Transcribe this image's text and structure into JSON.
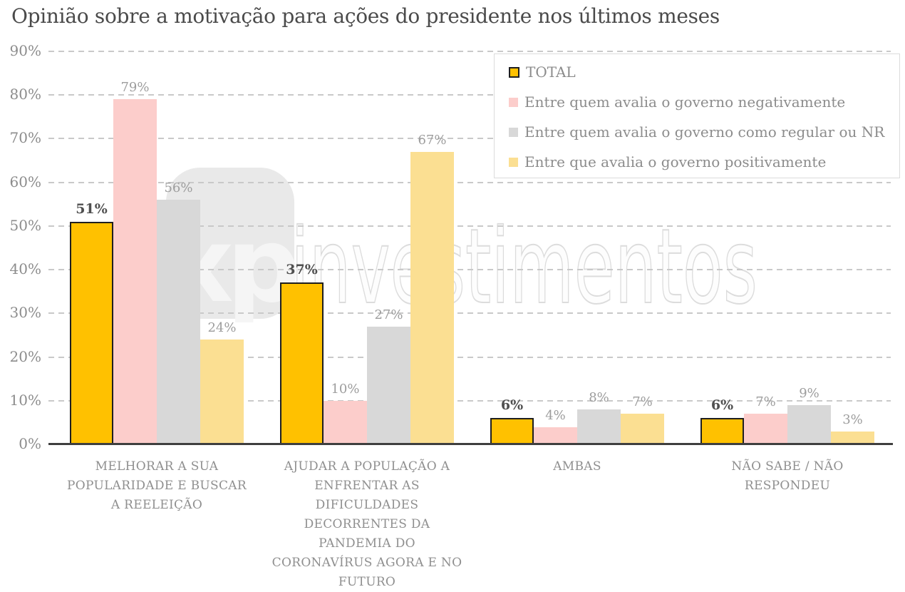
{
  "watermark": {
    "logo_text": "xp",
    "text": "investimentos"
  },
  "colors": {
    "gridline": "#c9c9c9",
    "axis_line": "#3f3f3f",
    "title_text": "#4a4a4a",
    "muted_text": "#8c8c8c",
    "value_label": "#9d9d9d",
    "value_label_emphasis": "#4f4f4f",
    "legend_border": "#dcdcdc",
    "total_bar_border": "#1f1f1f"
  },
  "chart_data": {
    "type": "bar",
    "title": "Opinião sobre a motivação para ações do presidente nos últimos meses",
    "categories": [
      "MELHORAR A SUA POPULARIDADE E BUSCAR A REELEIÇÃO",
      "AJUDAR A POPULAÇÃO A ENFRENTAR AS DIFICULDADES DECORRENTES DA PANDEMIA DO CORONAVÍRUS AGORA E NO FUTURO",
      "AMBAS",
      "NÃO SABE / NÃO RESPONDEU"
    ],
    "series": [
      {
        "name": "TOTAL",
        "color": "#ffc100",
        "border": "#1f1f1f",
        "emphasis": true,
        "values": [
          51,
          37,
          6,
          6
        ]
      },
      {
        "name": "Entre quem avalia o governo negativamente",
        "color": "#fccdcb",
        "emphasis": false,
        "values": [
          79,
          10,
          4,
          7
        ]
      },
      {
        "name": "Entre quem avalia o governo como regular ou NR",
        "color": "#d8d8d8",
        "emphasis": false,
        "values": [
          56,
          27,
          8,
          9
        ]
      },
      {
        "name": "Entre que avalia o governo positivamente",
        "color": "#fbdf92",
        "emphasis": false,
        "values": [
          24,
          67,
          7,
          3
        ]
      }
    ],
    "ylim": [
      0,
      90
    ],
    "ytick_step": 10,
    "ytick_labels": [
      "0%",
      "10%",
      "20%",
      "30%",
      "40%",
      "50%",
      "60%",
      "70%",
      "80%",
      "90%"
    ],
    "value_suffix": "%",
    "grid": "horizontal-dashed",
    "legend_position": "top-right"
  }
}
